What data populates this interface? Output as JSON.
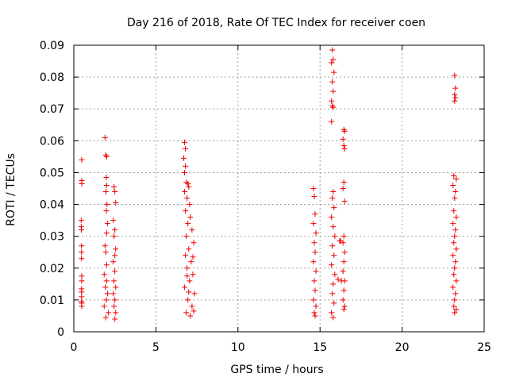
{
  "chart_data": {
    "type": "scatter",
    "title": "Day 216 of 2018, Rate Of TEC Index for receiver coen",
    "xlabel": "GPS time / hours",
    "ylabel": "ROTI / TECUs",
    "xlim": [
      0,
      25
    ],
    "ylim": [
      0,
      0.09
    ],
    "grid": true,
    "marker": "+",
    "color": "#ee0000",
    "xticks": [
      0,
      5,
      10,
      15,
      20,
      25
    ],
    "xtick_labels": [
      "0",
      "5",
      "10",
      "15",
      "20",
      "25"
    ],
    "yticks": [
      0,
      0.01,
      0.02,
      0.03,
      0.04,
      0.05,
      0.06,
      0.07,
      0.08,
      0.09
    ],
    "ytick_labels": [
      "0",
      "0.01",
      "0.02",
      "0.03",
      "0.04",
      "0.05",
      "0.06",
      "0.07",
      "0.08",
      "0.09"
    ],
    "series": [
      {
        "name": "ROTI",
        "points": [
          [
            0.48,
            0.054
          ],
          [
            0.48,
            0.0475
          ],
          [
            0.48,
            0.0465
          ],
          [
            0.45,
            0.035
          ],
          [
            0.45,
            0.033
          ],
          [
            0.46,
            0.032
          ],
          [
            0.47,
            0.027
          ],
          [
            0.47,
            0.025
          ],
          [
            0.47,
            0.023
          ],
          [
            0.48,
            0.0175
          ],
          [
            0.48,
            0.016
          ],
          [
            0.47,
            0.0135
          ],
          [
            0.47,
            0.0125
          ],
          [
            0.47,
            0.011
          ],
          [
            0.47,
            0.0095
          ],
          [
            0.48,
            0.009
          ],
          [
            0.48,
            0.008
          ],
          [
            1.9,
            0.061
          ],
          [
            1.95,
            0.0555
          ],
          [
            2.0,
            0.055
          ],
          [
            1.98,
            0.0485
          ],
          [
            2.0,
            0.046
          ],
          [
            1.95,
            0.044
          ],
          [
            2.02,
            0.04
          ],
          [
            1.98,
            0.038
          ],
          [
            2.05,
            0.034
          ],
          [
            2.0,
            0.031
          ],
          [
            1.9,
            0.027
          ],
          [
            1.95,
            0.025
          ],
          [
            2.0,
            0.021
          ],
          [
            1.85,
            0.018
          ],
          [
            2.0,
            0.016
          ],
          [
            1.92,
            0.014
          ],
          [
            2.05,
            0.012
          ],
          [
            1.98,
            0.01
          ],
          [
            1.85,
            0.008
          ],
          [
            2.1,
            0.006
          ],
          [
            1.95,
            0.0045
          ],
          [
            2.45,
            0.0455
          ],
          [
            2.5,
            0.044
          ],
          [
            2.55,
            0.0405
          ],
          [
            2.4,
            0.035
          ],
          [
            2.5,
            0.032
          ],
          [
            2.45,
            0.03
          ],
          [
            2.55,
            0.026
          ],
          [
            2.5,
            0.024
          ],
          [
            2.4,
            0.022
          ],
          [
            2.5,
            0.019
          ],
          [
            2.45,
            0.016
          ],
          [
            2.55,
            0.014
          ],
          [
            2.4,
            0.012
          ],
          [
            2.5,
            0.01
          ],
          [
            2.45,
            0.008
          ],
          [
            2.55,
            0.006
          ],
          [
            2.5,
            0.004
          ],
          [
            6.75,
            0.0595
          ],
          [
            6.8,
            0.0575
          ],
          [
            6.7,
            0.0545
          ],
          [
            6.8,
            0.052
          ],
          [
            6.75,
            0.05
          ],
          [
            6.85,
            0.047
          ],
          [
            6.95,
            0.0465
          ],
          [
            7.0,
            0.0455
          ],
          [
            6.75,
            0.044
          ],
          [
            6.9,
            0.042
          ],
          [
            7.05,
            0.04
          ],
          [
            6.8,
            0.038
          ],
          [
            7.1,
            0.036
          ],
          [
            6.95,
            0.034
          ],
          [
            7.2,
            0.032
          ],
          [
            6.85,
            0.03
          ],
          [
            7.3,
            0.028
          ],
          [
            7.0,
            0.026
          ],
          [
            6.8,
            0.024
          ],
          [
            7.15,
            0.022
          ],
          [
            6.9,
            0.02
          ],
          [
            7.25,
            0.018
          ],
          [
            7.05,
            0.016
          ],
          [
            6.75,
            0.014
          ],
          [
            7.35,
            0.012
          ],
          [
            6.95,
            0.01
          ],
          [
            7.2,
            0.008
          ],
          [
            6.85,
            0.006
          ],
          [
            7.1,
            0.005
          ],
          [
            7.3,
            0.0065
          ],
          [
            7.0,
            0.0125
          ],
          [
            7.25,
            0.0235
          ],
          [
            6.9,
            0.0175
          ],
          [
            14.6,
            0.045
          ],
          [
            14.65,
            0.0425
          ],
          [
            14.7,
            0.037
          ],
          [
            14.6,
            0.034
          ],
          [
            14.75,
            0.031
          ],
          [
            14.65,
            0.028
          ],
          [
            14.7,
            0.025
          ],
          [
            14.6,
            0.022
          ],
          [
            14.75,
            0.019
          ],
          [
            14.65,
            0.016
          ],
          [
            14.7,
            0.013
          ],
          [
            14.6,
            0.01
          ],
          [
            14.75,
            0.008
          ],
          [
            14.65,
            0.006
          ],
          [
            14.7,
            0.005
          ],
          [
            15.75,
            0.0885
          ],
          [
            15.8,
            0.0855
          ],
          [
            15.7,
            0.0845
          ],
          [
            15.85,
            0.0815
          ],
          [
            15.75,
            0.0785
          ],
          [
            15.8,
            0.0755
          ],
          [
            15.7,
            0.0725
          ],
          [
            15.75,
            0.071
          ],
          [
            15.8,
            0.0705
          ],
          [
            15.7,
            0.066
          ],
          [
            15.8,
            0.044
          ],
          [
            15.75,
            0.042
          ],
          [
            15.85,
            0.039
          ],
          [
            15.7,
            0.036
          ],
          [
            15.8,
            0.033
          ],
          [
            15.9,
            0.03
          ],
          [
            15.75,
            0.027
          ],
          [
            15.85,
            0.024
          ],
          [
            15.7,
            0.021
          ],
          [
            15.9,
            0.018
          ],
          [
            15.8,
            0.015
          ],
          [
            15.75,
            0.012
          ],
          [
            15.85,
            0.009
          ],
          [
            15.7,
            0.006
          ],
          [
            15.8,
            0.0045
          ],
          [
            16.2,
            0.0285
          ],
          [
            16.1,
            0.0165
          ],
          [
            16.3,
            0.016
          ],
          [
            16.25,
            0.0285
          ],
          [
            16.45,
            0.0635
          ],
          [
            16.5,
            0.063
          ],
          [
            16.4,
            0.0605
          ],
          [
            16.45,
            0.0585
          ],
          [
            16.5,
            0.0575
          ],
          [
            16.45,
            0.047
          ],
          [
            16.4,
            0.045
          ],
          [
            16.5,
            0.041
          ],
          [
            16.45,
            0.03
          ],
          [
            16.4,
            0.028
          ],
          [
            16.5,
            0.025
          ],
          [
            16.45,
            0.022
          ],
          [
            16.4,
            0.019
          ],
          [
            16.5,
            0.016
          ],
          [
            16.45,
            0.013
          ],
          [
            16.4,
            0.01
          ],
          [
            16.5,
            0.008
          ],
          [
            16.45,
            0.007
          ],
          [
            23.2,
            0.0805
          ],
          [
            23.25,
            0.0765
          ],
          [
            23.2,
            0.0745
          ],
          [
            23.25,
            0.0735
          ],
          [
            23.2,
            0.0725
          ],
          [
            23.15,
            0.049
          ],
          [
            23.3,
            0.048
          ],
          [
            23.1,
            0.046
          ],
          [
            23.25,
            0.044
          ],
          [
            23.2,
            0.042
          ],
          [
            23.15,
            0.038
          ],
          [
            23.3,
            0.036
          ],
          [
            23.1,
            0.034
          ],
          [
            23.25,
            0.032
          ],
          [
            23.2,
            0.03
          ],
          [
            23.15,
            0.028
          ],
          [
            23.3,
            0.026
          ],
          [
            23.1,
            0.024
          ],
          [
            23.25,
            0.022
          ],
          [
            23.2,
            0.02
          ],
          [
            23.15,
            0.018
          ],
          [
            23.3,
            0.016
          ],
          [
            23.1,
            0.014
          ],
          [
            23.25,
            0.012
          ],
          [
            23.2,
            0.01
          ],
          [
            23.15,
            0.008
          ],
          [
            23.3,
            0.007
          ],
          [
            23.2,
            0.006
          ]
        ]
      }
    ]
  }
}
